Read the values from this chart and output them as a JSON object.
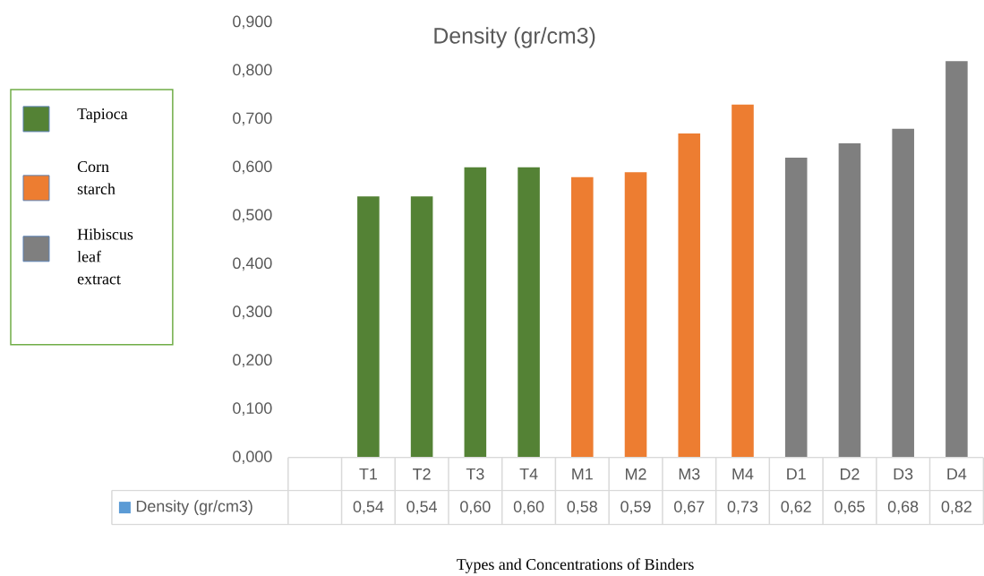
{
  "chart_data": {
    "type": "bar",
    "title": "Density (gr/cm3)",
    "xlabel": "Types and Concentrations of Binders",
    "annotations": [
      "Density (gr/cm3)"
    ],
    "categories": [
      null,
      "T1",
      "T2",
      "T3",
      "T4",
      "M1",
      "M2",
      "M3",
      "M4",
      "D1",
      "D2",
      "D3",
      "D4"
    ],
    "series": [
      {
        "name": "Tapioca",
        "color": "#548235",
        "values": [
          null,
          0.54,
          0.54,
          0.6,
          0.6,
          null,
          null,
          null,
          null,
          null,
          null,
          null,
          null
        ],
        "value_labels": [
          null,
          "0,54",
          "0,54",
          "0,60",
          "0,60",
          null,
          null,
          null,
          null,
          null,
          null,
          null,
          null
        ]
      },
      {
        "name": "Corn starch",
        "color": "#ed7d31",
        "values": [
          null,
          null,
          null,
          null,
          null,
          0.58,
          0.59,
          0.67,
          0.73,
          null,
          null,
          null,
          null
        ],
        "value_labels": [
          null,
          null,
          null,
          null,
          null,
          "0,58",
          "0,59",
          "0,67",
          "0,73",
          null,
          null,
          null,
          null
        ]
      },
      {
        "name": "Hibiscus leaf extract",
        "color": "#7f7f7f",
        "values": [
          null,
          null,
          null,
          null,
          null,
          null,
          null,
          null,
          null,
          0.62,
          0.65,
          0.68,
          0.82
        ],
        "value_labels": [
          null,
          null,
          null,
          null,
          null,
          null,
          null,
          null,
          null,
          "0,62",
          "0,65",
          "0,68",
          "0,82"
        ]
      }
    ],
    "ylim": [
      0,
      0.9
    ],
    "yticks": [
      {
        "value": 0,
        "label": "0,000"
      },
      {
        "value": 0.1,
        "label": "0,100"
      },
      {
        "value": 0.2,
        "label": "0,200"
      },
      {
        "value": 0.3,
        "label": "0,300"
      },
      {
        "value": 0.4,
        "label": "0,400"
      },
      {
        "value": 0.5,
        "label": "0,500"
      },
      {
        "value": 0.6,
        "label": "0,600"
      },
      {
        "value": 0.7,
        "label": "0,700"
      },
      {
        "value": 0.8,
        "label": "0,800"
      },
      {
        "value": 0.9,
        "label": "0,900"
      }
    ],
    "legend": "left"
  }
}
